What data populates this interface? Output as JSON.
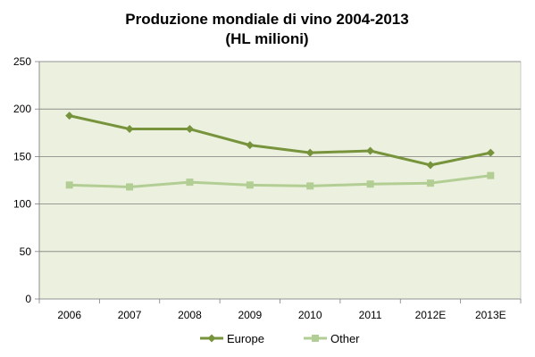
{
  "chart_data": {
    "type": "line",
    "title": "Produzione mondiale di vino 2004-2013",
    "subtitle": "(HL milioni)",
    "categories": [
      "2006",
      "2007",
      "2008",
      "2009",
      "2010",
      "2011",
      "2012E",
      "2013E"
    ],
    "series": [
      {
        "name": "Europe",
        "values": [
          193,
          179,
          179,
          162,
          154,
          156,
          141,
          154
        ],
        "color": "#77933c",
        "marker": "diamond"
      },
      {
        "name": "Other",
        "values": [
          120,
          118,
          123,
          120,
          119,
          121,
          122,
          130
        ],
        "color": "#b3ce94",
        "marker": "square"
      }
    ],
    "ylim": [
      0,
      250
    ],
    "yticks": [
      "0",
      "50",
      "100",
      "150",
      "200",
      "250"
    ],
    "grid": true,
    "plot_background": "#ebf1de",
    "legend": "bottom"
  }
}
